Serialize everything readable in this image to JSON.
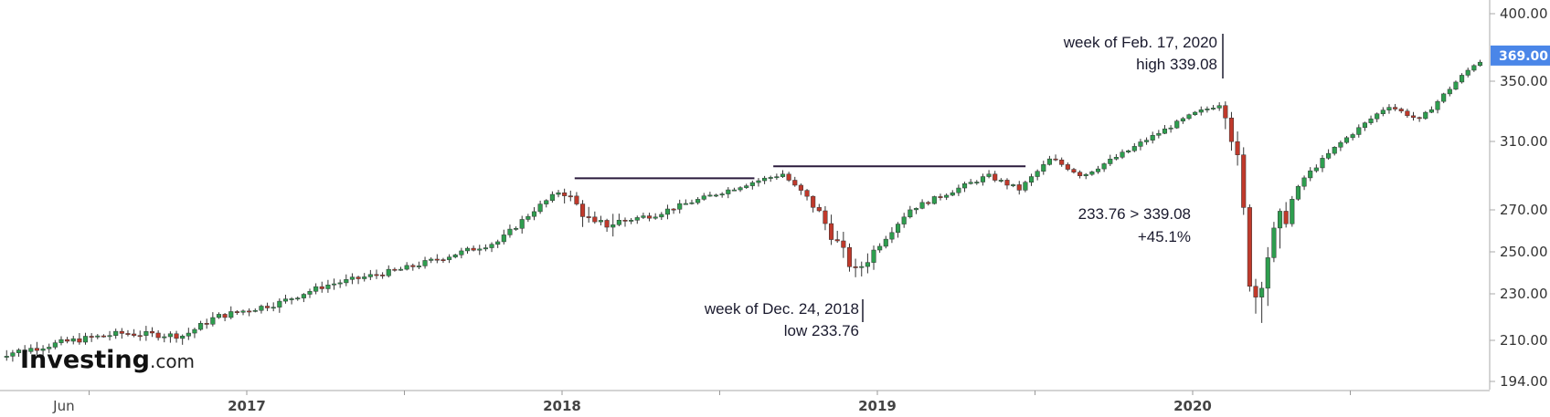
{
  "chart_data": {
    "type": "candlestick",
    "title": "",
    "price_axis": {
      "ticks": [
        "400.00",
        "350.00",
        "310.00",
        "270.00",
        "250.00",
        "230.00",
        "210.00",
        "194.00"
      ],
      "tick_values": [
        400,
        350,
        310,
        270,
        250,
        230,
        210,
        194
      ],
      "current_price": "369.00",
      "current_value": 369,
      "ylim": [
        190,
        405
      ]
    },
    "time_axis": {
      "labels": [
        {
          "text": "Jun",
          "bold": false,
          "t": 0.42
        },
        {
          "text": "2017",
          "bold": true,
          "t": 1.0
        },
        {
          "text": "2018",
          "bold": true,
          "t": 2.0
        },
        {
          "text": "2019",
          "bold": true,
          "t": 3.0
        },
        {
          "text": "2020",
          "bold": true,
          "t": 4.0
        }
      ],
      "xlim": [
        0.2,
        4.98
      ]
    },
    "colors": {
      "up": "#2e9e4f",
      "down": "#c0392b",
      "badge": "#4a86e8",
      "line": "#2b1b3d"
    },
    "anchors": [
      {
        "t": 0.2,
        "v": 204
      },
      {
        "t": 0.45,
        "v": 210
      },
      {
        "t": 0.6,
        "v": 213
      },
      {
        "t": 0.8,
        "v": 212
      },
      {
        "t": 0.9,
        "v": 220
      },
      {
        "t": 1.1,
        "v": 226
      },
      {
        "t": 1.25,
        "v": 234
      },
      {
        "t": 1.5,
        "v": 242
      },
      {
        "t": 1.8,
        "v": 255
      },
      {
        "t": 2.0,
        "v": 282
      },
      {
        "t": 2.1,
        "v": 262
      },
      {
        "t": 2.3,
        "v": 268
      },
      {
        "t": 2.6,
        "v": 286
      },
      {
        "t": 2.7,
        "v": 291
      },
      {
        "t": 2.8,
        "v": 272
      },
      {
        "t": 2.93,
        "v": 240
      },
      {
        "t": 3.1,
        "v": 270
      },
      {
        "t": 3.35,
        "v": 290
      },
      {
        "t": 3.45,
        "v": 282
      },
      {
        "t": 3.55,
        "v": 300
      },
      {
        "t": 3.65,
        "v": 290
      },
      {
        "t": 3.8,
        "v": 305
      },
      {
        "t": 4.0,
        "v": 328
      },
      {
        "t": 4.1,
        "v": 336
      },
      {
        "t": 4.14,
        "v": 300
      },
      {
        "t": 4.19,
        "v": 225
      },
      {
        "t": 4.24,
        "v": 250
      },
      {
        "t": 4.35,
        "v": 288
      },
      {
        "t": 4.45,
        "v": 306
      },
      {
        "t": 4.62,
        "v": 334
      },
      {
        "t": 4.72,
        "v": 324
      },
      {
        "t": 4.9,
        "v": 364
      },
      {
        "t": 4.98,
        "v": 369
      }
    ],
    "resistance_lines": [
      {
        "t1": 2.04,
        "t2": 2.61,
        "v": 288.5
      },
      {
        "t1": 2.67,
        "t2": 3.47,
        "v": 295.5
      }
    ],
    "annotations": {
      "peak": {
        "line1": "week of Feb. 17, 2020",
        "line2": "high 339.08",
        "t": 4.12,
        "v": 339.08
      },
      "trough": {
        "line1": "week of Dec. 24, 2018",
        "line2": "low 233.76",
        "t": 2.93,
        "v": 233.76
      },
      "rally": {
        "line1": "233.76 > 339.08",
        "line2": "+45.1%"
      }
    },
    "watermark": {
      "brand": "Investing",
      "suffix": ".com"
    }
  }
}
